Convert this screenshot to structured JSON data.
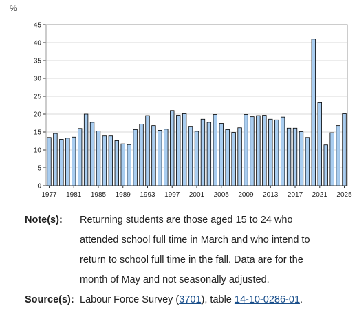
{
  "chart_data": {
    "type": "bar",
    "unit": "%",
    "x": [
      1977,
      1978,
      1979,
      1980,
      1981,
      1982,
      1983,
      1984,
      1985,
      1986,
      1987,
      1988,
      1989,
      1990,
      1991,
      1992,
      1993,
      1994,
      1995,
      1996,
      1997,
      1998,
      1999,
      2000,
      2001,
      2002,
      2003,
      2004,
      2005,
      2006,
      2007,
      2008,
      2009,
      2010,
      2011,
      2012,
      2013,
      2014,
      2015,
      2016,
      2017,
      2018,
      2019,
      2020,
      2021,
      2022,
      2023,
      2024,
      2025
    ],
    "values": [
      13.5,
      14.6,
      13.0,
      13.3,
      13.6,
      16.0,
      20.0,
      17.7,
      15.3,
      13.9,
      13.9,
      12.6,
      11.7,
      11.5,
      15.7,
      17.2,
      19.6,
      16.8,
      15.5,
      15.8,
      21.0,
      19.7,
      20.1,
      16.6,
      15.2,
      18.6,
      17.7,
      19.9,
      17.4,
      15.7,
      14.9,
      16.2,
      19.9,
      19.3,
      19.6,
      19.7,
      18.6,
      18.4,
      19.2,
      16.1,
      16.1,
      15.1,
      13.5,
      41.0,
      23.2,
      11.4,
      14.8,
      16.8,
      20.1
    ],
    "tick_labels": [
      "1977",
      "1981",
      "1985",
      "1989",
      "1993",
      "1997",
      "2001",
      "2005",
      "2009",
      "2013",
      "2017",
      "2021",
      "2025"
    ],
    "yticks": [
      0,
      5,
      10,
      15,
      20,
      25,
      30,
      35,
      40,
      45
    ],
    "ylim": [
      0,
      45
    ],
    "bar_color": "#a9cdf0",
    "bar_edge": "#000000"
  },
  "notes": {
    "note_label": "Note(s):",
    "note_text_1": "Returning students are those aged 15 to 24 who",
    "note_text_2": "attended school full time in March and who intend to",
    "note_text_3": "return to school full time in the fall. Data are for the",
    "note_text_4": "month of May and not seasonally adjusted.",
    "source_label": "Source(s):",
    "source_pre": "Labour Force Survey (",
    "source_link1": "3701",
    "source_mid": "), table ",
    "source_link2": "14-10-0286-01",
    "source_post": "."
  }
}
